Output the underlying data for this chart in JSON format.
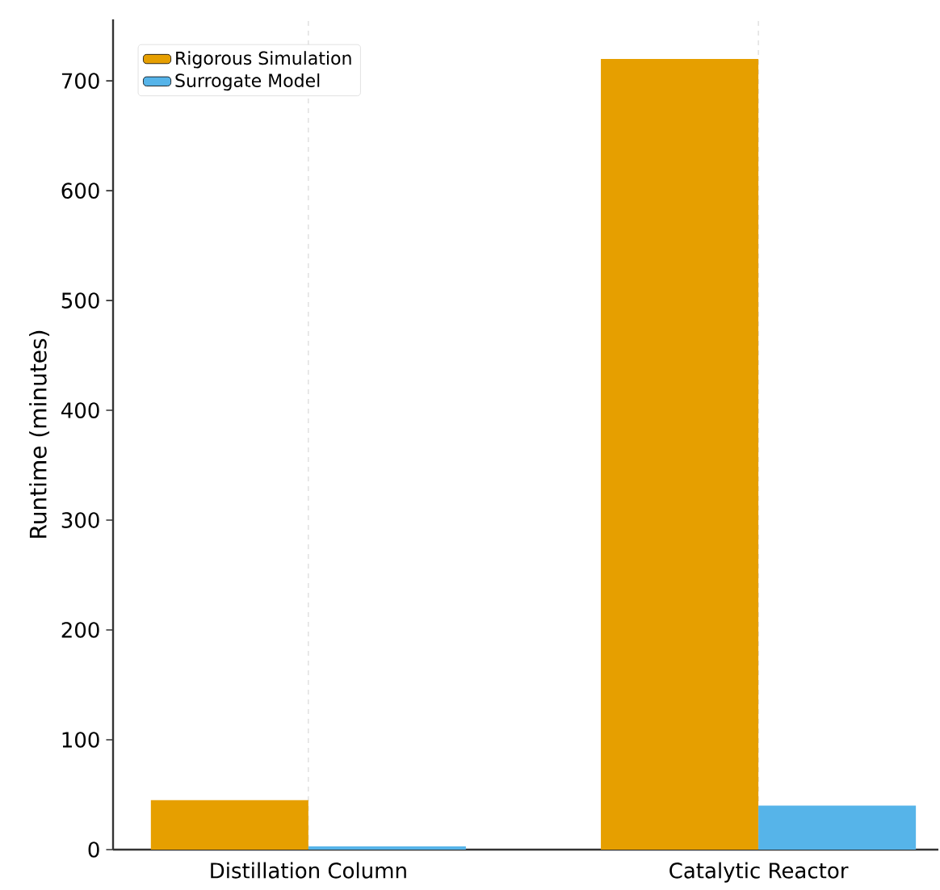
{
  "chart_data": {
    "type": "bar",
    "ylabel": "Runtime (minutes)",
    "categories": [
      "Distillation Column",
      "Catalytic Reactor"
    ],
    "series": [
      {
        "name": "Rigorous Simulation",
        "color": "#e69f00",
        "values": [
          45,
          720
        ]
      },
      {
        "name": "Surrogate Model",
        "color": "#56b4e9",
        "values": [
          3,
          40
        ]
      }
    ],
    "ylim": [
      0,
      756
    ],
    "yticks": [
      0,
      100,
      200,
      300,
      400,
      500,
      600,
      700
    ],
    "grid": "x",
    "legend": "top left"
  }
}
